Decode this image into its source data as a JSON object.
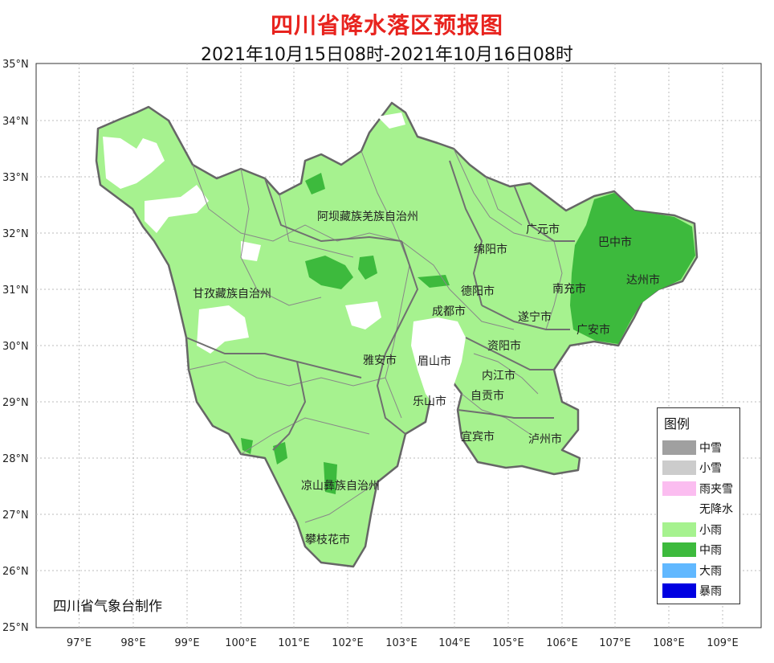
{
  "title": "四川省降水落区预报图",
  "subtitle": "2021年10月15日08时-2021年10月16日08时",
  "credit": "四川省气象台制作",
  "axes": {
    "lat_labels": [
      "35°N",
      "34°N",
      "33°N",
      "32°N",
      "31°N",
      "30°N",
      "29°N",
      "28°N",
      "27°N",
      "26°N",
      "25°N"
    ],
    "lon_labels": [
      "97°E",
      "98°E",
      "99°E",
      "100°E",
      "101°E",
      "102°E",
      "103°E",
      "104°E",
      "105°E",
      "106°E",
      "107°E",
      "108°E",
      "109°E"
    ]
  },
  "regions": [
    {
      "name": "阿坝藏族羌族自治州"
    },
    {
      "name": "甘孜藏族自治州"
    },
    {
      "name": "绵阳市"
    },
    {
      "name": "广元市"
    },
    {
      "name": "巴中市"
    },
    {
      "name": "达州市"
    },
    {
      "name": "南充市"
    },
    {
      "name": "德阳市"
    },
    {
      "name": "成都市"
    },
    {
      "name": "遂宁市"
    },
    {
      "name": "广安市"
    },
    {
      "name": "资阳市"
    },
    {
      "name": "雅安市"
    },
    {
      "name": "眉山市"
    },
    {
      "name": "内江市"
    },
    {
      "name": "乐山市"
    },
    {
      "name": "自贡市"
    },
    {
      "name": "宜宾市"
    },
    {
      "name": "泸州市"
    },
    {
      "name": "凉山彝族自治州"
    },
    {
      "name": "攀枝花市"
    }
  ],
  "legend": {
    "title": "图例",
    "items": [
      {
        "label": "中雪",
        "color": "#a0a0a0"
      },
      {
        "label": "小雪",
        "color": "#cccccc"
      },
      {
        "label": "雨夹雪",
        "color": "#fbbdf0"
      },
      {
        "label": "无降水",
        "color": "#ffffff"
      },
      {
        "label": "小雨",
        "color": "#a6f28f"
      },
      {
        "label": "中雨",
        "color": "#3dba3d"
      },
      {
        "label": "大雨",
        "color": "#61b8ff"
      },
      {
        "label": "暴雨",
        "color": "#0000e1"
      }
    ]
  }
}
